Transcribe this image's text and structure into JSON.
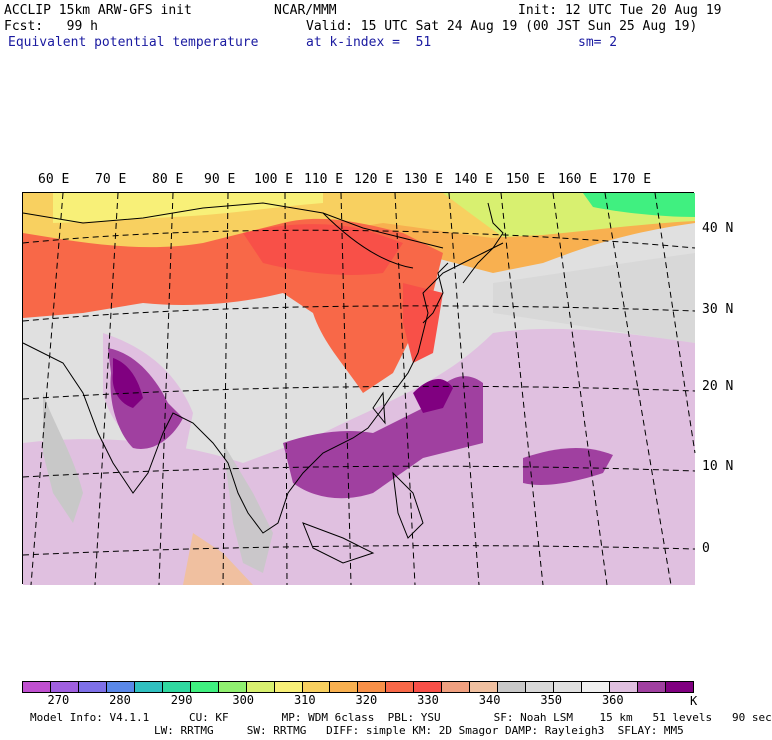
{
  "header": {
    "line1_left": "ACCLIP 15km ARW-GFS init",
    "line1_center": "NCAR/MMM",
    "line1_right": "Init: 12 UTC Tue 20 Aug 19",
    "line2_left": "Fcst:   99 h",
    "line2_right": "Valid: 15 UTC Sat 24 Aug 19 (00 JST Sun 25 Aug 19)",
    "field_name": "Equivalent potential temperature",
    "level": "at k-index =  51",
    "smoothing": "sm= 2"
  },
  "map": {
    "lon_labels": [
      "60 E",
      "70 E",
      "80 E",
      "90 E",
      "100 E",
      "110 E",
      "120 E",
      "130 E",
      "140 E",
      "150 E",
      "160 E",
      "170 E"
    ],
    "lat_labels": [
      "40 N",
      "30 N",
      "20 N",
      "10 N",
      "0"
    ]
  },
  "colorbar": {
    "unit": "K",
    "labels": [
      "270",
      "280",
      "290",
      "300",
      "310",
      "320",
      "330",
      "340",
      "350",
      "360"
    ],
    "colors": [
      "#c050d0",
      "#a060e0",
      "#7e70e8",
      "#5a88e8",
      "#30c0c0",
      "#30d8a0",
      "#40f080",
      "#90f070",
      "#d8f070",
      "#f8f078",
      "#f8d060",
      "#f8b050",
      "#f89048",
      "#f86848",
      "#f85048",
      "#f0a080",
      "#f0c0a0",
      "#c8c8c8",
      "#d8d8d8",
      "#e0e0e0",
      "#f0f0f0",
      "#e0c0e0",
      "#a040a0",
      "#800080"
    ]
  },
  "footer": {
    "line1": "Model Info: V4.1.1      CU: KF        MP: WDM 6class  PBL: YSU        SF: Noah LSM    15 km   51 levels   90 sec",
    "line2": "LW: RRTMG     SW: RRTMG   DIFF: simple KM: 2D Smagor DAMP: Rayleigh3  SFLAY: MM5"
  }
}
